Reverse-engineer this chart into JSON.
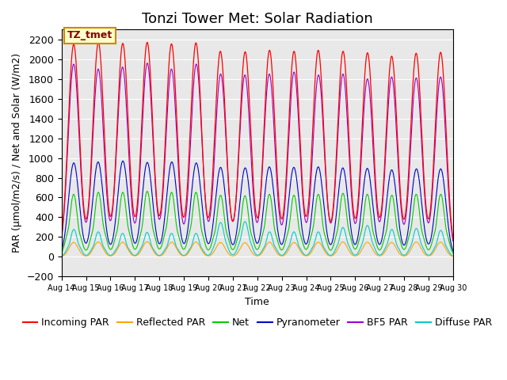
{
  "title": "Tonzi Tower Met: Solar Radiation",
  "ylabel": "PAR (μmol/m2/s) / Net and Solar (W/m2)",
  "xlabel": "Time",
  "ylim": [
    -200,
    2300
  ],
  "yticks": [
    -200,
    0,
    200,
    400,
    600,
    800,
    1000,
    1200,
    1400,
    1600,
    1800,
    2000,
    2200
  ],
  "bg_color": "#e8e8e8",
  "annotation_text": "TZ_tmet",
  "annotation_bg": "#ffffcc",
  "annotation_border": "#cc8800",
  "num_days": 16,
  "start_day": 14,
  "colors": {
    "incoming_par": "#ff0000",
    "reflected_par": "#ffa500",
    "net": "#00cc00",
    "pyranometer": "#0000cc",
    "bf5_par": "#9900cc",
    "diffuse_par": "#00cccc"
  },
  "labels": {
    "incoming_par": "Incoming PAR",
    "reflected_par": "Reflected PAR",
    "net": "Net",
    "pyranometer": "Pyranometer",
    "bf5_par": "BF5 PAR",
    "diffuse_par": "Diffuse PAR"
  },
  "incoming_peaks": [
    2150,
    2170,
    2160,
    2170,
    2155,
    2165,
    2080,
    2075,
    2090,
    2080,
    2090,
    2080,
    2065,
    2030,
    2060,
    2070
  ],
  "bf5_peaks": [
    1950,
    1900,
    1920,
    1960,
    1900,
    1950,
    1850,
    1840,
    1850,
    1870,
    1840,
    1850,
    1800,
    1820,
    1810,
    1820
  ],
  "pyran_peaks": [
    950,
    960,
    970,
    955,
    960,
    950,
    905,
    900,
    910,
    905,
    910,
    900,
    895,
    880,
    890,
    890
  ],
  "net_peaks": [
    640,
    660,
    660,
    670,
    660,
    660,
    630,
    625,
    640,
    630,
    640,
    650,
    640,
    630,
    640,
    640
  ],
  "refl_peaks": [
    145,
    150,
    148,
    152,
    148,
    150,
    145,
    143,
    148,
    145,
    148,
    150,
    148,
    145,
    150,
    148
  ],
  "diff_peaks": [
    280,
    255,
    240,
    250,
    240,
    240,
    350,
    360,
    255,
    255,
    255,
    300,
    320,
    280,
    290,
    270
  ],
  "title_fontsize": 13,
  "axis_fontsize": 9,
  "tick_fontsize": 7,
  "legend_fontsize": 9
}
